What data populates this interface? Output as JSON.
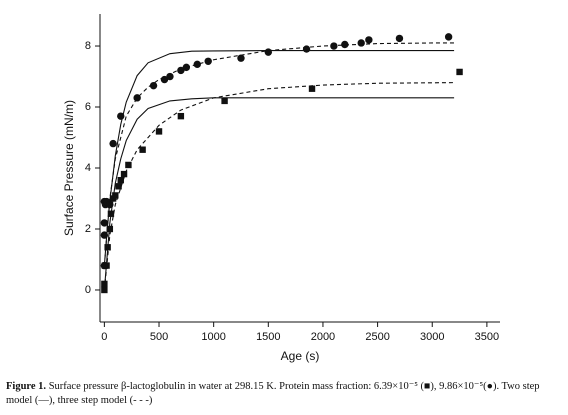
{
  "chart_data": {
    "type": "scatter",
    "xlabel": "Age (s)",
    "ylabel": "Surface Pressure (mN/m)",
    "xlim": [
      -40,
      3620
    ],
    "ylim": [
      -1.05,
      9.05
    ],
    "xticks": [
      0,
      500,
      1000,
      1500,
      2000,
      2500,
      3000,
      3500
    ],
    "yticks": [
      0,
      2,
      4,
      6,
      8
    ],
    "series": [
      {
        "marker": "square",
        "color": "#111111",
        "x": [
          0,
          0,
          5,
          20,
          30,
          50,
          60,
          80,
          100,
          130,
          150,
          180,
          220,
          350,
          500,
          700,
          1100,
          1900,
          3250
        ],
        "values": [
          0,
          0.2,
          0.8,
          0.8,
          1.4,
          2,
          2.5,
          3,
          3.1,
          3.4,
          3.6,
          3.8,
          4.1,
          4.6,
          5.2,
          5.7,
          6.2,
          6.6,
          7.15
        ]
      },
      {
        "marker": "circle",
        "color": "#111111",
        "x": [
          0,
          0,
          0,
          0,
          10,
          20,
          50,
          80,
          150,
          300,
          450,
          550,
          600,
          700,
          750,
          850,
          950,
          1250,
          1500,
          1850,
          2100,
          2200,
          2350,
          2420,
          2700,
          3150
        ],
        "values": [
          0.8,
          1.8,
          2.2,
          2.9,
          2.8,
          2.9,
          2.8,
          4.8,
          5.7,
          6.3,
          6.7,
          6.9,
          7.0,
          7.2,
          7.3,
          7.4,
          7.5,
          7.6,
          7.8,
          7.9,
          8.0,
          8.05,
          8.1,
          8.2,
          8.25,
          8.3
        ]
      },
      {
        "style": "solid",
        "color": "#111111",
        "x": [
          0,
          25,
          50,
          100,
          150,
          200,
          300,
          400,
          600,
          800,
          1000,
          1500,
          2000,
          3200
        ],
        "values": [
          0.8,
          1.95,
          2.91,
          4.4,
          5.43,
          6.16,
          7.03,
          7.45,
          7.75,
          7.83,
          7.84,
          7.85,
          7.85,
          7.85
        ]
      },
      {
        "style": "dashed",
        "color": "#111111",
        "x": [
          0,
          50,
          100,
          200,
          300,
          400,
          500,
          700,
          1000,
          1500,
          2000,
          2500,
          3000,
          3200
        ],
        "values": [
          0.8,
          3.0,
          4.3,
          5.7,
          6.3,
          6.65,
          6.9,
          7.25,
          7.55,
          7.85,
          8.0,
          8.08,
          8.1,
          8.1
        ]
      },
      {
        "style": "solid",
        "color": "#111111",
        "x": [
          0,
          50,
          100,
          150,
          200,
          300,
          400,
          600,
          800,
          1000,
          2000,
          3200
        ],
        "values": [
          0,
          2.2,
          3.5,
          4.3,
          4.9,
          5.6,
          5.95,
          6.2,
          6.27,
          6.3,
          6.3,
          6.3
        ]
      },
      {
        "style": "dashed",
        "color": "#111111",
        "x": [
          0,
          50,
          100,
          200,
          300,
          500,
          700,
          1000,
          1500,
          2000,
          2500,
          3200
        ],
        "values": [
          0,
          1.8,
          2.8,
          3.9,
          4.6,
          5.4,
          5.9,
          6.3,
          6.6,
          6.72,
          6.78,
          6.8
        ]
      }
    ]
  },
  "caption": {
    "label": "Figure 1.",
    "text": "Surface pressure β-lactoglobulin in water at 298.15 K. Protein mass fraction: 6.39×10⁻⁵ (■), 9.86×10⁻⁵(●). Two step model (—), three step model (- - -)"
  }
}
